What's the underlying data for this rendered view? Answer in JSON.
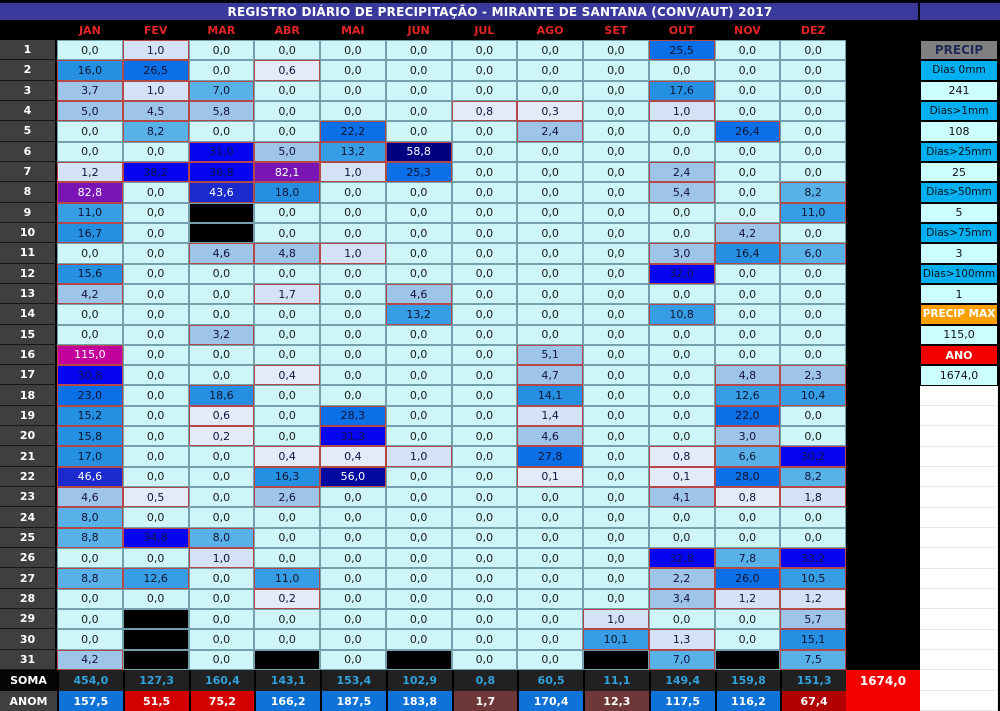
{
  "title": "REGISTRO DIÁRIO DE PRECIPITAÇÃO - MIRANTE DE SANTANA (CONV/AUT) 2017",
  "months": [
    "JAN",
    "FEV",
    "MAR",
    "ABR",
    "MAI",
    "JUN",
    "JUL",
    "AGO",
    "SET",
    "OUT",
    "NOV",
    "DEZ"
  ],
  "rows": [
    {
      "day": "1",
      "values": [
        "0,0",
        "1,0",
        "0,0",
        "0,0",
        "0,0",
        "0,0",
        "0,0",
        "0,0",
        "0,0",
        "25,5",
        "0,0",
        "0,0"
      ]
    },
    {
      "day": "2",
      "values": [
        "16,0",
        "26,5",
        "0,0",
        "0,6",
        "0,0",
        "0,0",
        "0,0",
        "0,0",
        "0,0",
        "0,0",
        "0,0",
        "0,0"
      ]
    },
    {
      "day": "3",
      "values": [
        "3,7",
        "1,0",
        "7,0",
        "0,0",
        "0,0",
        "0,0",
        "0,0",
        "0,0",
        "0,0",
        "17,6",
        "0,0",
        "0,0"
      ]
    },
    {
      "day": "4",
      "values": [
        "5,0",
        "4,5",
        "5,8",
        "0,0",
        "0,0",
        "0,0",
        "0,8",
        "0,3",
        "0,0",
        "1,0",
        "0,0",
        "0,0"
      ]
    },
    {
      "day": "5",
      "values": [
        "0,0",
        "8,2",
        "0,0",
        "0,0",
        "22,2",
        "0,0",
        "0,0",
        "2,4",
        "0,0",
        "0,0",
        "26,4",
        "0,0"
      ]
    },
    {
      "day": "6",
      "values": [
        "0,0",
        "0,0",
        "31,0",
        "5,0",
        "13,2",
        "58,8",
        "0,0",
        "0,0",
        "0,0",
        "0,0",
        "0,0",
        "0,0"
      ]
    },
    {
      "day": "7",
      "values": [
        "1,2",
        "38,2",
        "36,8",
        "82,1",
        "1,0",
        "25,3",
        "0,0",
        "0,0",
        "0,0",
        "2,4",
        "0,0",
        "0,0"
      ]
    },
    {
      "day": "8",
      "values": [
        "82,8",
        "0,0",
        "43,6",
        "18,0",
        "0,0",
        "0,0",
        "0,0",
        "0,0",
        "0,0",
        "5,4",
        "0,0",
        "8,2"
      ]
    },
    {
      "day": "9",
      "values": [
        "11,0",
        "0,0",
        null,
        "0,0",
        "0,0",
        "0,0",
        "0,0",
        "0,0",
        "0,0",
        "0,0",
        "0,0",
        "11,0"
      ]
    },
    {
      "day": "10",
      "values": [
        "16,7",
        "0,0",
        null,
        "0,0",
        "0,0",
        "0,0",
        "0,0",
        "0,0",
        "0,0",
        "0,0",
        "4,2",
        "0,0"
      ]
    },
    {
      "day": "11",
      "values": [
        "0,0",
        "0,0",
        "4,6",
        "4,8",
        "1,0",
        "0,0",
        "0,0",
        "0,0",
        "0,0",
        "3,0",
        "16,4",
        "6,0"
      ]
    },
    {
      "day": "12",
      "values": [
        "15,6",
        "0,0",
        "0,0",
        "0,0",
        "0,0",
        "0,0",
        "0,0",
        "0,0",
        "0,0",
        "32,0",
        "0,0",
        "0,0"
      ]
    },
    {
      "day": "13",
      "values": [
        "4,2",
        "0,0",
        "0,0",
        "1,7",
        "0,0",
        "4,6",
        "0,0",
        "0,0",
        "0,0",
        "0,0",
        "0,0",
        "0,0"
      ]
    },
    {
      "day": "14",
      "values": [
        "0,0",
        "0,0",
        "0,0",
        "0,0",
        "0,0",
        "13,2",
        "0,0",
        "0,0",
        "0,0",
        "10,8",
        "0,0",
        "0,0"
      ]
    },
    {
      "day": "15",
      "values": [
        "0,0",
        "0,0",
        "3,2",
        "0,0",
        "0,0",
        "0,0",
        "0,0",
        "0,0",
        "0,0",
        "0,0",
        "0,0",
        "0,0"
      ]
    },
    {
      "day": "16",
      "values": [
        "115,0",
        "0,0",
        "0,0",
        "0,0",
        "0,0",
        "0,0",
        "0,0",
        "5,1",
        "0,0",
        "0,0",
        "0,0",
        "0,0"
      ]
    },
    {
      "day": "17",
      "values": [
        "30,8",
        "0,0",
        "0,0",
        "0,4",
        "0,0",
        "0,0",
        "0,0",
        "4,7",
        "0,0",
        "0,0",
        "4,8",
        "2,3"
      ]
    },
    {
      "day": "18",
      "values": [
        "23,0",
        "0,0",
        "18,6",
        "0,0",
        "0,0",
        "0,0",
        "0,0",
        "14,1",
        "0,0",
        "0,0",
        "12,6",
        "10,4"
      ]
    },
    {
      "day": "19",
      "values": [
        "15,2",
        "0,0",
        "0,6",
        "0,0",
        "28,3",
        "0,0",
        "0,0",
        "1,4",
        "0,0",
        "0,0",
        "22,0",
        "0,0"
      ]
    },
    {
      "day": "20",
      "values": [
        "15,8",
        "0,0",
        "0,2",
        "0,0",
        "31,3",
        "0,0",
        "0,0",
        "4,6",
        "0,0",
        "0,0",
        "3,0",
        "0,0"
      ]
    },
    {
      "day": "21",
      "values": [
        "17,0",
        "0,0",
        "0,0",
        "0,4",
        "0,4",
        "1,0",
        "0,0",
        "27,8",
        "0,0",
        "0,8",
        "6,6",
        "30,2"
      ]
    },
    {
      "day": "22",
      "values": [
        "46,6",
        "0,0",
        "0,0",
        "16,3",
        "56,0",
        "0,0",
        "0,0",
        "0,1",
        "0,0",
        "0,1",
        "28,0",
        "8,2"
      ]
    },
    {
      "day": "23",
      "values": [
        "4,6",
        "0,5",
        "0,0",
        "2,6",
        "0,0",
        "0,0",
        "0,0",
        "0,0",
        "0,0",
        "4,1",
        "0,8",
        "1,8"
      ]
    },
    {
      "day": "24",
      "values": [
        "8,0",
        "0,0",
        "0,0",
        "0,0",
        "0,0",
        "0,0",
        "0,0",
        "0,0",
        "0,0",
        "0,0",
        "0,0",
        "0,0"
      ]
    },
    {
      "day": "25",
      "values": [
        "8,8",
        "34,8",
        "8,0",
        "0,0",
        "0,0",
        "0,0",
        "0,0",
        "0,0",
        "0,0",
        "0,0",
        "0,0",
        "0,0"
      ]
    },
    {
      "day": "26",
      "values": [
        "0,0",
        "0,0",
        "1,0",
        "0,0",
        "0,0",
        "0,0",
        "0,0",
        "0,0",
        "0,0",
        "32,8",
        "7,8",
        "33,2"
      ]
    },
    {
      "day": "27",
      "values": [
        "8,8",
        "12,6",
        "0,0",
        "11,0",
        "0,0",
        "0,0",
        "0,0",
        "0,0",
        "0,0",
        "2,2",
        "26,0",
        "10,5"
      ]
    },
    {
      "day": "28",
      "values": [
        "0,0",
        "0,0",
        "0,0",
        "0,2",
        "0,0",
        "0,0",
        "0,0",
        "0,0",
        "0,0",
        "3,4",
        "1,2",
        "1,2"
      ]
    },
    {
      "day": "29",
      "values": [
        "0,0",
        null,
        "0,0",
        "0,0",
        "0,0",
        "0,0",
        "0,0",
        "0,0",
        "1,0",
        "0,0",
        "0,0",
        "5,7"
      ]
    },
    {
      "day": "30",
      "values": [
        "0,0",
        null,
        "0,0",
        "0,0",
        "0,0",
        "0,0",
        "0,0",
        "0,0",
        "10,1",
        "1,3",
        "0,0",
        "15,1"
      ]
    },
    {
      "day": "31",
      "values": [
        "4,2",
        null,
        "0,0",
        null,
        "0,0",
        null,
        "0,0",
        "0,0",
        null,
        "7,0",
        null,
        "7,5"
      ]
    }
  ],
  "soma": {
    "label": "SOMA",
    "values": [
      "454,0",
      "127,3",
      "160,4",
      "143,1",
      "153,4",
      "102,9",
      "0,8",
      "60,5",
      "11,1",
      "149,4",
      "159,8",
      "151,3"
    ],
    "total": "1674,0",
    "text_color": "#31A2DC"
  },
  "anom": {
    "label": "ANOM",
    "values": [
      "157,5",
      "51,5",
      "75,2",
      "166,2",
      "187,5",
      "183,8",
      "1,7",
      "170,4",
      "12,3",
      "117,5",
      "116,2",
      "67,4"
    ],
    "cell_colors": [
      "#0F72D8",
      "#D40000",
      "#D40000",
      "#0F72D8",
      "#0F72D8",
      "#0F72D8",
      "#6E3838",
      "#0F72D8",
      "#6E3838",
      "#0F72D8",
      "#0F72D8",
      "#B00000"
    ]
  },
  "panel": {
    "header": "PRECIP",
    "items": [
      {
        "label": "Dias 0mm",
        "value": "241"
      },
      {
        "label": "Dias>1mm",
        "value": "108"
      },
      {
        "label": "Dias>25mm",
        "value": "25"
      },
      {
        "label": "Dias>50mm",
        "value": "5"
      },
      {
        "label": "Dias>75mm",
        "value": "3"
      },
      {
        "label": "Dias>100mm",
        "value": "1"
      }
    ],
    "precip_max": {
      "label": "PRECIP MAX",
      "value": "115,0"
    },
    "ano": {
      "label": "ANO",
      "value": "1674,0"
    }
  },
  "colors": {
    "title_bg": "#39399B",
    "month_text": "#E42525",
    "value_scale": [
      {
        "min": 100,
        "bg": "#C2009C",
        "fg": "#FFFFFF"
      },
      {
        "min": 80,
        "bg": "#7A14B4",
        "fg": "#FFFFFF"
      },
      {
        "min": 58,
        "bg": "#000080",
        "fg": "#FFFFFF"
      },
      {
        "min": 50,
        "bg": "#000A9E",
        "fg": "#FFFFFF"
      },
      {
        "min": 40,
        "bg": "#1B2ACC",
        "fg": "#FFFFFF"
      },
      {
        "min": 30,
        "bg": "#0505F0",
        "fg": "#10104A"
      },
      {
        "min": 20,
        "bg": "#0B6FE8",
        "fg": "#0E1430"
      },
      {
        "min": 14,
        "bg": "#2590E2",
        "fg": "#0E1430"
      },
      {
        "min": 10,
        "bg": "#379EE6",
        "fg": "#0E1430"
      },
      {
        "min": 6,
        "bg": "#58B2E8",
        "fg": "#12123A"
      },
      {
        "min": 2,
        "bg": "#9EC4E8",
        "fg": "#12123A"
      },
      {
        "min": 1,
        "bg": "#D4E2F6",
        "fg": "#12123A"
      },
      {
        "min": 0.05,
        "bg": "#E3EAF8",
        "fg": "#12123A"
      },
      {
        "min": -1,
        "bg": "#CEF6F8",
        "fg": "#1A1A1A"
      }
    ]
  }
}
